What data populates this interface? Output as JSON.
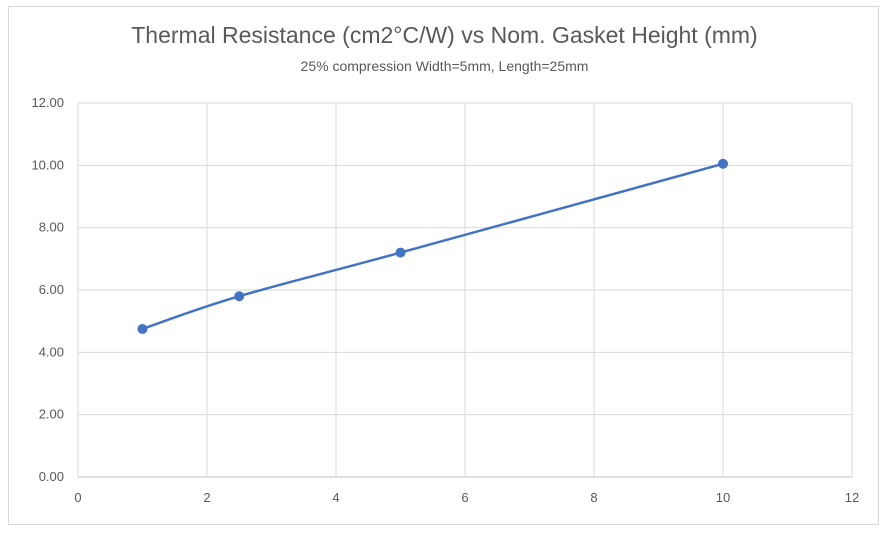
{
  "chart_data": {
    "type": "line",
    "title": "Thermal Resistance (cm2°C/W) vs Nom. Gasket Height (mm)",
    "subtitle": "25% compression Width=5mm, Length=25mm",
    "xlabel": "",
    "ylabel": "",
    "xlim": [
      0,
      12
    ],
    "ylim": [
      0,
      12
    ],
    "x_ticks": [
      "0",
      "2",
      "4",
      "6",
      "8",
      "10",
      "12"
    ],
    "y_ticks": [
      "0.00",
      "2.00",
      "4.00",
      "6.00",
      "8.00",
      "10.00",
      "12.00"
    ],
    "grid": true,
    "legend": "none",
    "series": [
      {
        "color": "#4472c4",
        "points": [
          {
            "x": 1,
            "y": 4.75
          },
          {
            "x": 2.5,
            "y": 5.8
          },
          {
            "x": 5,
            "y": 7.2
          },
          {
            "x": 10,
            "y": 10.05
          }
        ]
      }
    ]
  }
}
